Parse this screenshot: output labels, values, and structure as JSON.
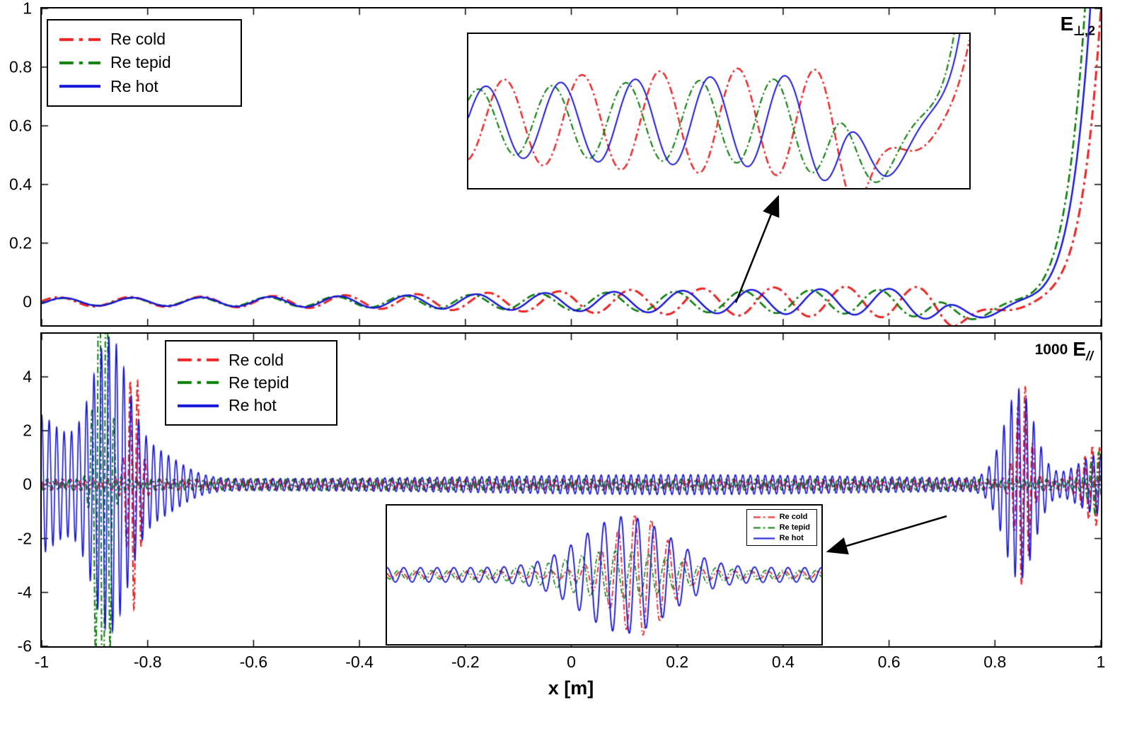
{
  "figure": {
    "xlabel": "x [m]",
    "xticks": [
      -1,
      -0.8,
      -0.6,
      -0.4,
      -0.2,
      0,
      0.2,
      0.4,
      0.6,
      0.8,
      1
    ],
    "background": "#ffffff",
    "axis_color": "#000000",
    "palette": {
      "cold": "#ee2222",
      "tepid": "#0a7f0a",
      "hot": "#1414dd"
    }
  },
  "legend": {
    "items": [
      {
        "id": "cold",
        "label": "Re cold",
        "dash": "dashdot"
      },
      {
        "id": "tepid",
        "label": "Re tepid",
        "dash": "dashdot"
      },
      {
        "id": "hot",
        "label": "Re hot",
        "dash": "solid"
      }
    ]
  },
  "labels": {
    "top_panel": {
      "main": "E",
      "sub": "⊥,2"
    },
    "bottom_panel": {
      "prefix": "1000",
      "main": "E",
      "sub": "//"
    }
  },
  "chart_data": [
    {
      "id": "top-panel",
      "type": "line",
      "canvas": "top-panel-canvas",
      "xlim": [
        -1,
        1
      ],
      "ylim": [
        -0.08,
        1
      ],
      "yticks": [
        0,
        0.2,
        0.4,
        0.6,
        0.8,
        1
      ],
      "draw_ticks": true,
      "samples": 4000,
      "series": [
        {
          "id": "cold",
          "dash": "dashdot",
          "lw": 3.0,
          "x_shift": 0.02,
          "amp_scale": 1.18,
          "amp_terms": [
            {
              "t": "const",
              "a": 0.012
            },
            {
              "t": "logistic",
              "a": 0.036,
              "mu": -0.05,
              "s": 0.28
            }
          ],
          "damp": {
            "x0": 0.7,
            "rate": 14
          },
          "carrier": {
            "freq": 7.4,
            "phase": 2.0
          },
          "offset_terms": [
            {
              "t": "gauss",
              "a": -0.05,
              "mu": 0.75,
              "sigma": 0.07
            },
            {
              "t": "powtail",
              "a": 1,
              "x0": 0.72,
              "w": 0.26,
              "p": 7
            }
          ]
        },
        {
          "id": "tepid",
          "dash": "dashdot",
          "lw": 2.6,
          "x_shift": -0.01,
          "amp_scale": 0.92,
          "amp_terms": [
            {
              "t": "const",
              "a": 0.012
            },
            {
              "t": "logistic",
              "a": 0.036,
              "mu": -0.05,
              "s": 0.28
            }
          ],
          "damp": {
            "x0": 0.7,
            "rate": 14
          },
          "carrier": {
            "freq": 7.8,
            "phase": 2.5
          },
          "offset_terms": [
            {
              "t": "gauss",
              "a": -0.05,
              "mu": 0.75,
              "sigma": 0.07
            },
            {
              "t": "powtail",
              "a": 1,
              "x0": 0.72,
              "w": 0.26,
              "p": 7
            }
          ]
        },
        {
          "id": "hot",
          "dash": "solid",
          "lw": 2.4,
          "x_shift": 0,
          "amp_scale": 1.0,
          "amp_terms": [
            {
              "t": "const",
              "a": 0.012
            },
            {
              "t": "logistic",
              "a": 0.036,
              "mu": -0.05,
              "s": 0.28
            }
          ],
          "damp": {
            "x0": 0.7,
            "rate": 14
          },
          "carrier": {
            "freq": 7.7,
            "phase": 2.4
          },
          "offset_terms": [
            {
              "t": "gauss",
              "a": -0.05,
              "mu": 0.75,
              "sigma": 0.07
            },
            {
              "t": "powtail",
              "a": 1,
              "x0": 0.72,
              "w": 0.26,
              "p": 7
            }
          ]
        }
      ]
    },
    {
      "id": "bottom-panel",
      "type": "line",
      "canvas": "bottom-panel-canvas",
      "xlim": [
        -1,
        1
      ],
      "ylim": [
        -6,
        5.6
      ],
      "yticks": [
        -6,
        -4,
        -2,
        0,
        2,
        4
      ],
      "draw_ticks": true,
      "samples": 9000,
      "series": [
        {
          "id": "cold",
          "dash": "dashdot",
          "lw": 2.2,
          "amp_terms": [
            {
              "t": "const",
              "a": 0.2
            },
            {
              "t": "gauss",
              "a": 4.4,
              "mu": -0.826,
              "sigma": 0.016
            },
            {
              "t": "gauss",
              "a": 3.6,
              "mu": 0.853,
              "sigma": 0.018
            },
            {
              "t": "gauss",
              "a": 1.3,
              "mu": 0.99,
              "sigma": 0.03
            }
          ],
          "carrier": {
            "freq": 71,
            "phase": 0.9
          }
        },
        {
          "id": "tepid",
          "dash": "dashdot",
          "lw": 2.0,
          "amp_terms": [
            {
              "t": "const",
              "a": 0.2
            },
            {
              "t": "gauss",
              "a": 13,
              "mu": -0.885,
              "sigma": 0.016
            },
            {
              "t": "gauss",
              "a": 1.0,
              "mu": 0.995,
              "sigma": 0.02
            }
          ],
          "carrier": {
            "freq": 71,
            "phase": 1.9
          }
        },
        {
          "id": "hot",
          "dash": "solid",
          "lw": 1.6,
          "amp_terms": [
            {
              "t": "const",
              "a": 0.22
            },
            {
              "t": "gauss",
              "a": 2.6,
              "mu": -1.03,
              "sigma": 0.1
            },
            {
              "t": "gauss",
              "a": 4.8,
              "mu": -0.872,
              "sigma": 0.048
            },
            {
              "t": "gauss",
              "a": 1.0,
              "mu": -0.79,
              "sigma": 0.07
            },
            {
              "t": "gauss",
              "a": 0.15,
              "mu": 0.2,
              "sigma": 0.45
            },
            {
              "t": "gauss",
              "a": 3.3,
              "mu": 0.846,
              "sigma": 0.04
            },
            {
              "t": "gauss",
              "a": 0.9,
              "mu": 1.0,
              "sigma": 0.06
            }
          ],
          "carrier": {
            "freq": 71,
            "phase": 0
          }
        }
      ]
    },
    {
      "id": "top-inset",
      "type": "line",
      "canvas": "top-inset-canvas",
      "xlim": [
        0.05,
        0.92
      ],
      "ylim": [
        -0.065,
        0.085
      ],
      "series_ref": 0,
      "samples": 2200,
      "lw_scale": 0.8
    },
    {
      "id": "bottom-inset",
      "type": "line",
      "canvas": "bottom-inset-canvas",
      "xlim": [
        0,
        1
      ],
      "ylim": [
        -1.15,
        1.15
      ],
      "samples": 3200,
      "series": [
        {
          "id": "cold",
          "dash": "dashdot",
          "lw": 1.8,
          "amp_terms": [
            {
              "t": "const",
              "a": 0.06
            },
            {
              "t": "gauss",
              "a": 0.95,
              "mu": 0.58,
              "sigma": 0.085
            }
          ],
          "carrier": {
            "freq": 26,
            "phase": 1.1
          }
        },
        {
          "id": "tepid",
          "dash": "dashdot",
          "lw": 1.6,
          "amp_terms": [
            {
              "t": "const",
              "a": 0.07
            },
            {
              "t": "gauss",
              "a": 0.33,
              "mu": 0.53,
              "sigma": 0.16
            }
          ],
          "carrier": {
            "freq": 26,
            "phase": 2.1
          }
        },
        {
          "id": "hot",
          "dash": "solid",
          "lw": 1.8,
          "amp_terms": [
            {
              "t": "const",
              "a": 0.12
            },
            {
              "t": "gauss",
              "a": 0.85,
              "mu": 0.55,
              "sigma": 0.14
            }
          ],
          "carrier": {
            "freq": 26,
            "phase": 0
          }
        }
      ]
    }
  ]
}
